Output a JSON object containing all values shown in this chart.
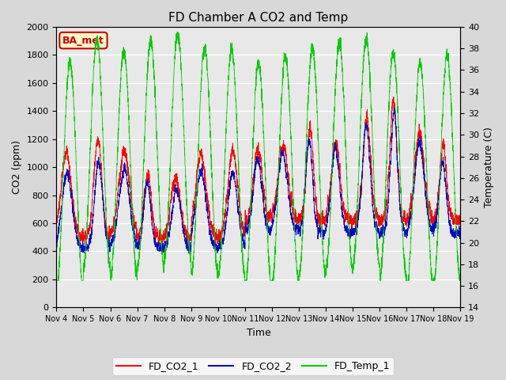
{
  "title": "FD Chamber A CO2 and Temp",
  "xlabel": "Time",
  "ylabel_left": "CO2 (ppm)",
  "ylabel_right": "Temperature (C)",
  "ylim_left": [
    0,
    2000
  ],
  "ylim_right": [
    14,
    40
  ],
  "yticks_left": [
    0,
    200,
    400,
    600,
    800,
    1000,
    1200,
    1400,
    1600,
    1800,
    2000
  ],
  "yticks_right": [
    14,
    16,
    18,
    20,
    22,
    24,
    26,
    28,
    30,
    32,
    34,
    36,
    38,
    40
  ],
  "xtick_labels": [
    "Nov 4",
    "Nov 5",
    "Nov 6",
    "Nov 7",
    "Nov 8",
    "Nov 9",
    "Nov 10",
    "Nov 11",
    "Nov 12",
    "Nov 13",
    "Nov 14",
    "Nov 15",
    "Nov 16",
    "Nov 17",
    "Nov 18",
    "Nov 19"
  ],
  "color_co2_1": "#ff0000",
  "color_co2_2": "#0000cc",
  "color_temp": "#00cc00",
  "legend_label_1": "FD_CO2_1",
  "legend_label_2": "FD_CO2_2",
  "legend_label_3": "FD_Temp_1",
  "annotation_text": "BA_met",
  "annotation_color": "#cc0000",
  "annotation_bg": "#ffffcc",
  "fig_bg": "#d8d8d8",
  "plot_bg": "#e8e8e8",
  "n_days": 15,
  "pts_per_day": 288,
  "seed": 7
}
